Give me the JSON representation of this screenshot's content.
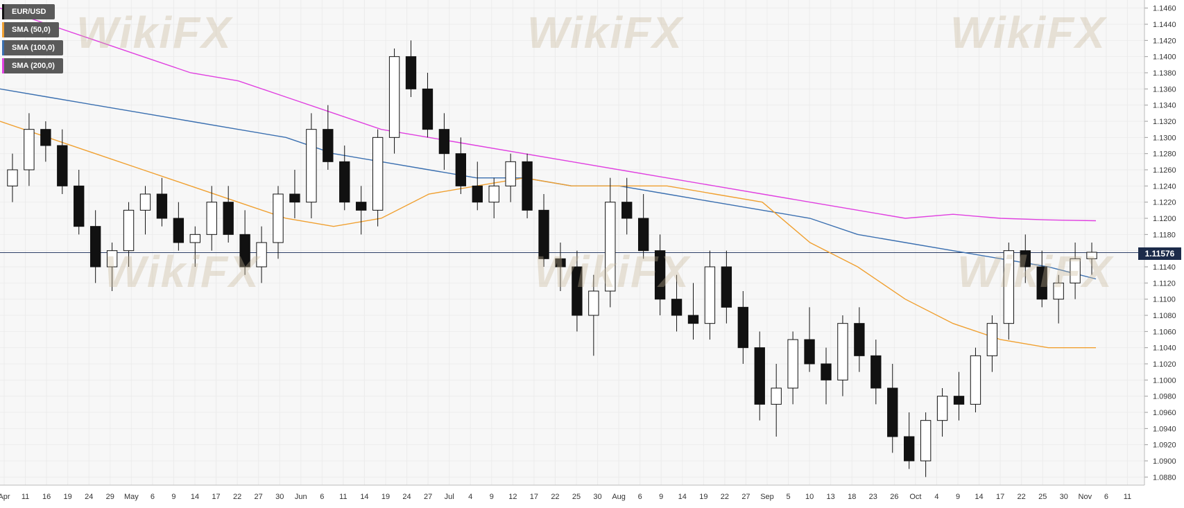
{
  "chart_data": {
    "type": "candlestick",
    "instrument": "EUR/USD",
    "legend": [
      {
        "label": "EUR/USD",
        "color": "#111111"
      },
      {
        "label": "SMA (50,0)",
        "color": "#f0a030"
      },
      {
        "label": "SMA (100,0)",
        "color": "#3a6fb0"
      },
      {
        "label": "SMA (200,0)",
        "color": "#e040e0"
      }
    ],
    "last_price": "1.11576",
    "ylim": [
      1.087,
      1.147
    ],
    "y_ticks": [
      "1.0880",
      "1.0900",
      "1.0920",
      "1.0940",
      "1.0960",
      "1.0980",
      "1.1000",
      "1.1020",
      "1.1040",
      "1.1060",
      "1.1080",
      "1.1100",
      "1.1120",
      "1.1140",
      "1.1160",
      "1.1180",
      "1.1200",
      "1.1220",
      "1.1240",
      "1.1260",
      "1.1280",
      "1.1300",
      "1.1320",
      "1.1340",
      "1.1360",
      "1.1380",
      "1.1400",
      "1.1420",
      "1.1440",
      "1.1460"
    ],
    "x_ticks": [
      "Apr",
      "11",
      "16",
      "19",
      "24",
      "29",
      "May",
      "6",
      "9",
      "14",
      "17",
      "22",
      "27",
      "30",
      "Jun",
      "6",
      "11",
      "14",
      "19",
      "24",
      "27",
      "Jul",
      "4",
      "9",
      "12",
      "17",
      "22",
      "25",
      "30",
      "Aug",
      "6",
      "9",
      "14",
      "19",
      "22",
      "27",
      "Sep",
      "5",
      "10",
      "13",
      "18",
      "23",
      "26",
      "Oct",
      "4",
      "9",
      "14",
      "17",
      "22",
      "25",
      "30",
      "Nov",
      "6",
      "11"
    ],
    "sma50": [
      1.132,
      1.13,
      1.128,
      1.126,
      1.124,
      1.122,
      1.12,
      1.119,
      1.12,
      1.123,
      1.124,
      1.125,
      1.124,
      1.124,
      1.124,
      1.123,
      1.122,
      1.117,
      1.114,
      1.11,
      1.107,
      1.105,
      1.104,
      1.104
    ],
    "sma100": [
      1.136,
      1.135,
      1.134,
      1.133,
      1.132,
      1.131,
      1.13,
      1.128,
      1.127,
      1.126,
      1.125,
      1.125,
      1.124,
      1.124,
      1.123,
      1.122,
      1.121,
      1.12,
      1.118,
      1.117,
      1.116,
      1.115,
      1.114,
      1.1125
    ],
    "sma200": [
      1.146,
      1.144,
      1.142,
      1.14,
      1.138,
      1.137,
      1.135,
      1.133,
      1.131,
      1.13,
      1.129,
      1.128,
      1.127,
      1.126,
      1.125,
      1.124,
      1.123,
      1.122,
      1.121,
      1.12,
      1.1205,
      1.12,
      1.1198,
      1.1197
    ],
    "candles": [
      [
        1.124,
        1.128,
        1.122,
        1.126
      ],
      [
        1.126,
        1.133,
        1.124,
        1.131
      ],
      [
        1.131,
        1.132,
        1.127,
        1.129
      ],
      [
        1.129,
        1.131,
        1.123,
        1.124
      ],
      [
        1.124,
        1.126,
        1.118,
        1.119
      ],
      [
        1.119,
        1.121,
        1.112,
        1.114
      ],
      [
        1.114,
        1.117,
        1.111,
        1.116
      ],
      [
        1.116,
        1.122,
        1.114,
        1.121
      ],
      [
        1.121,
        1.124,
        1.118,
        1.123
      ],
      [
        1.123,
        1.125,
        1.119,
        1.12
      ],
      [
        1.12,
        1.122,
        1.116,
        1.117
      ],
      [
        1.117,
        1.119,
        1.114,
        1.118
      ],
      [
        1.118,
        1.124,
        1.116,
        1.122
      ],
      [
        1.122,
        1.124,
        1.117,
        1.118
      ],
      [
        1.118,
        1.121,
        1.113,
        1.114
      ],
      [
        1.114,
        1.119,
        1.112,
        1.117
      ],
      [
        1.117,
        1.124,
        1.115,
        1.123
      ],
      [
        1.123,
        1.126,
        1.12,
        1.122
      ],
      [
        1.122,
        1.133,
        1.12,
        1.131
      ],
      [
        1.131,
        1.134,
        1.126,
        1.127
      ],
      [
        1.127,
        1.129,
        1.121,
        1.122
      ],
      [
        1.122,
        1.124,
        1.118,
        1.121
      ],
      [
        1.121,
        1.131,
        1.119,
        1.13
      ],
      [
        1.13,
        1.141,
        1.128,
        1.14
      ],
      [
        1.14,
        1.142,
        1.135,
        1.136
      ],
      [
        1.136,
        1.138,
        1.13,
        1.131
      ],
      [
        1.131,
        1.133,
        1.126,
        1.128
      ],
      [
        1.128,
        1.13,
        1.123,
        1.124
      ],
      [
        1.124,
        1.127,
        1.121,
        1.122
      ],
      [
        1.122,
        1.125,
        1.12,
        1.124
      ],
      [
        1.124,
        1.128,
        1.122,
        1.127
      ],
      [
        1.127,
        1.128,
        1.12,
        1.121
      ],
      [
        1.121,
        1.123,
        1.114,
        1.115
      ],
      [
        1.115,
        1.117,
        1.111,
        1.114
      ],
      [
        1.114,
        1.116,
        1.106,
        1.108
      ],
      [
        1.108,
        1.113,
        1.103,
        1.111
      ],
      [
        1.111,
        1.125,
        1.109,
        1.122
      ],
      [
        1.122,
        1.125,
        1.118,
        1.12
      ],
      [
        1.12,
        1.123,
        1.115,
        1.116
      ],
      [
        1.116,
        1.118,
        1.108,
        1.11
      ],
      [
        1.11,
        1.113,
        1.106,
        1.108
      ],
      [
        1.108,
        1.112,
        1.105,
        1.107
      ],
      [
        1.107,
        1.116,
        1.105,
        1.114
      ],
      [
        1.114,
        1.116,
        1.107,
        1.109
      ],
      [
        1.109,
        1.111,
        1.102,
        1.104
      ],
      [
        1.104,
        1.106,
        1.095,
        1.097
      ],
      [
        1.097,
        1.102,
        1.093,
        1.099
      ],
      [
        1.099,
        1.106,
        1.097,
        1.105
      ],
      [
        1.105,
        1.109,
        1.101,
        1.102
      ],
      [
        1.102,
        1.104,
        1.097,
        1.1
      ],
      [
        1.1,
        1.108,
        1.098,
        1.107
      ],
      [
        1.107,
        1.109,
        1.101,
        1.103
      ],
      [
        1.103,
        1.105,
        1.097,
        1.099
      ],
      [
        1.099,
        1.102,
        1.091,
        1.093
      ],
      [
        1.093,
        1.096,
        1.089,
        1.09
      ],
      [
        1.09,
        1.096,
        1.088,
        1.095
      ],
      [
        1.095,
        1.099,
        1.093,
        1.098
      ],
      [
        1.098,
        1.101,
        1.095,
        1.097
      ],
      [
        1.097,
        1.104,
        1.096,
        1.103
      ],
      [
        1.103,
        1.108,
        1.101,
        1.107
      ],
      [
        1.107,
        1.117,
        1.105,
        1.116
      ],
      [
        1.116,
        1.118,
        1.112,
        1.114
      ],
      [
        1.114,
        1.116,
        1.109,
        1.11
      ],
      [
        1.11,
        1.113,
        1.107,
        1.112
      ],
      [
        1.112,
        1.117,
        1.11,
        1.115
      ],
      [
        1.115,
        1.117,
        1.113,
        1.1158
      ]
    ]
  }
}
